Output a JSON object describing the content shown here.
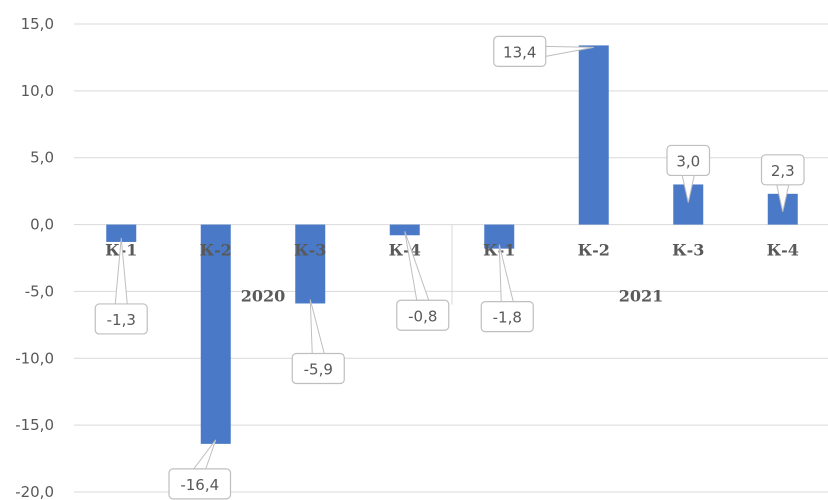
{
  "chart_data": {
    "type": "bar",
    "groups": [
      {
        "label": "2020",
        "categories": [
          "К-1",
          "К-2",
          "К-3",
          "К-4"
        ],
        "values": [
          -1.3,
          -16.4,
          -5.9,
          -0.8
        ]
      },
      {
        "label": "2021",
        "categories": [
          "К-1",
          "К-2",
          "К-3",
          "К-4"
        ],
        "values": [
          -1.8,
          13.4,
          3.0,
          2.3
        ]
      }
    ],
    "data_labels": [
      "-1,3",
      "-16,4",
      "-5,9",
      "-0,8",
      "-1,8",
      "13,4",
      "3,0",
      "2,3"
    ],
    "y_ticks": [
      "15,0",
      "10,0",
      "5,0",
      "0,0",
      "-5,0",
      "-10,0",
      "-15,0",
      "-20,0"
    ],
    "ylim": [
      -20,
      15
    ],
    "title": "",
    "xlabel": "",
    "ylabel": "",
    "grid": "horizontal",
    "legend": "none",
    "bar_color": "#4a7ac7",
    "grid_color": "#d9d9d9",
    "label_box_border": "#bfbfbf"
  }
}
